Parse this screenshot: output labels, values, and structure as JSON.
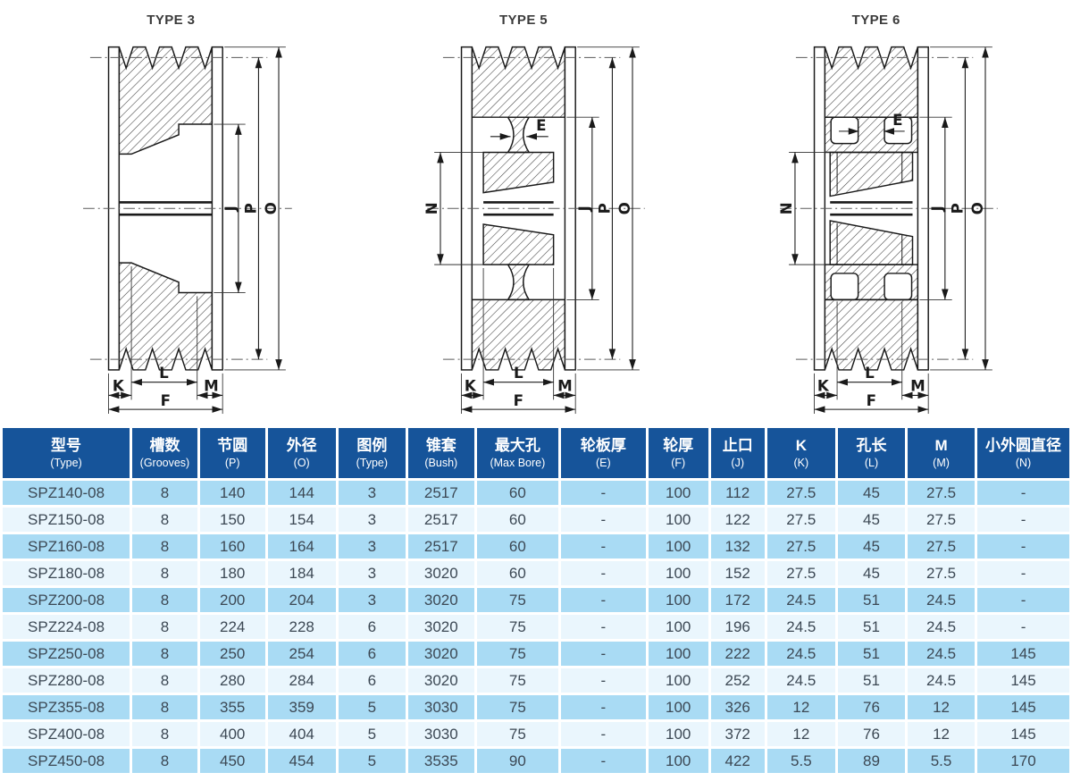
{
  "diagrams": {
    "items": [
      {
        "title": "TYPE 3",
        "labels": {
          "J": "J",
          "P": "P",
          "O": "O",
          "K": "K",
          "L": "L",
          "M": "M",
          "F": "F"
        }
      },
      {
        "title": "TYPE 5",
        "labels": {
          "E": "E",
          "N": "N",
          "J": "J",
          "P": "P",
          "O": "O",
          "K": "K",
          "L": "L",
          "M": "M",
          "F": "F"
        }
      },
      {
        "title": "TYPE 6",
        "labels": {
          "E": "E",
          "N": "N",
          "J": "J",
          "P": "P",
          "O": "O",
          "K": "K",
          "L": "L",
          "M": "M",
          "F": "F"
        }
      }
    ]
  },
  "table": {
    "columns": [
      {
        "zh": "型号",
        "en": "(Type)"
      },
      {
        "zh": "槽数",
        "en": "(Grooves)"
      },
      {
        "zh": "节圆",
        "en": "(P)"
      },
      {
        "zh": "外径",
        "en": "(O)"
      },
      {
        "zh": "图例",
        "en": "(Type)"
      },
      {
        "zh": "锥套",
        "en": "(Bush)"
      },
      {
        "zh": "最大孔",
        "en": "(Max Bore)"
      },
      {
        "zh": "轮板厚",
        "en": "(E)"
      },
      {
        "zh": "轮厚",
        "en": "(F)"
      },
      {
        "zh": "止口",
        "en": "(J)"
      },
      {
        "zh": "K",
        "en": "(K)"
      },
      {
        "zh": "孔长",
        "en": "(L)"
      },
      {
        "zh": "M",
        "en": "(M)"
      },
      {
        "zh": "小外圆直径",
        "en": "(N)"
      }
    ],
    "rows": [
      [
        "SPZ140-08",
        "8",
        "140",
        "144",
        "3",
        "2517",
        "60",
        "-",
        "100",
        "112",
        "27.5",
        "45",
        "27.5",
        "-"
      ],
      [
        "SPZ150-08",
        "8",
        "150",
        "154",
        "3",
        "2517",
        "60",
        "-",
        "100",
        "122",
        "27.5",
        "45",
        "27.5",
        "-"
      ],
      [
        "SPZ160-08",
        "8",
        "160",
        "164",
        "3",
        "2517",
        "60",
        "-",
        "100",
        "132",
        "27.5",
        "45",
        "27.5",
        "-"
      ],
      [
        "SPZ180-08",
        "8",
        "180",
        "184",
        "3",
        "3020",
        "60",
        "-",
        "100",
        "152",
        "27.5",
        "45",
        "27.5",
        "-"
      ],
      [
        "SPZ200-08",
        "8",
        "200",
        "204",
        "3",
        "3020",
        "75",
        "-",
        "100",
        "172",
        "24.5",
        "51",
        "24.5",
        "-"
      ],
      [
        "SPZ224-08",
        "8",
        "224",
        "228",
        "6",
        "3020",
        "75",
        "-",
        "100",
        "196",
        "24.5",
        "51",
        "24.5",
        "-"
      ],
      [
        "SPZ250-08",
        "8",
        "250",
        "254",
        "6",
        "3020",
        "75",
        "-",
        "100",
        "222",
        "24.5",
        "51",
        "24.5",
        "145"
      ],
      [
        "SPZ280-08",
        "8",
        "280",
        "284",
        "6",
        "3020",
        "75",
        "-",
        "100",
        "252",
        "24.5",
        "51",
        "24.5",
        "145"
      ],
      [
        "SPZ355-08",
        "8",
        "355",
        "359",
        "5",
        "3030",
        "75",
        "-",
        "100",
        "326",
        "12",
        "76",
        "12",
        "145"
      ],
      [
        "SPZ400-08",
        "8",
        "400",
        "404",
        "5",
        "3030",
        "75",
        "-",
        "100",
        "372",
        "12",
        "76",
        "12",
        "145"
      ],
      [
        "SPZ450-08",
        "8",
        "450",
        "454",
        "5",
        "3535",
        "90",
        "-",
        "100",
        "422",
        "5.5",
        "89",
        "5.5",
        "170"
      ]
    ],
    "colors": {
      "header_bg": "#16549a",
      "header_text": "#ffffff",
      "row_odd": "#a9dbf4",
      "row_even": "#eaf6fd",
      "cell_text": "#3c4854"
    }
  }
}
